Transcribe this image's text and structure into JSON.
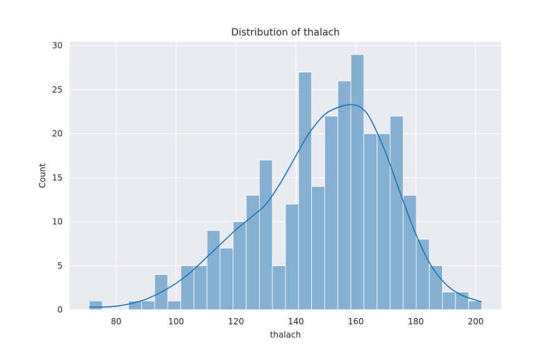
{
  "chart_data": {
    "type": "histogram",
    "title": "Distribution of thalach",
    "xlabel": "thalach",
    "ylabel": "Count",
    "xlim": [
      64.45,
      208.55
    ],
    "ylim": [
      0,
      30.45
    ],
    "xticks": [
      80,
      100,
      120,
      140,
      160,
      180,
      200
    ],
    "yticks": [
      0,
      5,
      10,
      15,
      20,
      25,
      30
    ],
    "grid": true,
    "bar_color": "#85b0d2",
    "kde_color": "#1f77b4",
    "background_color": "#eaeaf2",
    "bins": [
      {
        "x0": 71.0,
        "x1": 75.37,
        "count": 1
      },
      {
        "x0": 75.37,
        "x1": 79.73,
        "count": 0
      },
      {
        "x0": 79.73,
        "x1": 84.1,
        "count": 0
      },
      {
        "x0": 84.1,
        "x1": 88.47,
        "count": 1
      },
      {
        "x0": 88.47,
        "x1": 92.83,
        "count": 1
      },
      {
        "x0": 92.83,
        "x1": 97.2,
        "count": 4
      },
      {
        "x0": 97.2,
        "x1": 101.57,
        "count": 1
      },
      {
        "x0": 101.57,
        "x1": 105.93,
        "count": 5
      },
      {
        "x0": 105.93,
        "x1": 110.3,
        "count": 5
      },
      {
        "x0": 110.3,
        "x1": 114.67,
        "count": 9
      },
      {
        "x0": 114.67,
        "x1": 119.03,
        "count": 7
      },
      {
        "x0": 119.03,
        "x1": 123.4,
        "count": 10
      },
      {
        "x0": 123.4,
        "x1": 127.77,
        "count": 13
      },
      {
        "x0": 127.77,
        "x1": 132.13,
        "count": 17
      },
      {
        "x0": 132.13,
        "x1": 136.5,
        "count": 5
      },
      {
        "x0": 136.5,
        "x1": 140.87,
        "count": 12
      },
      {
        "x0": 140.87,
        "x1": 145.23,
        "count": 27
      },
      {
        "x0": 145.23,
        "x1": 149.6,
        "count": 14
      },
      {
        "x0": 149.6,
        "x1": 153.97,
        "count": 22
      },
      {
        "x0": 153.97,
        "x1": 158.33,
        "count": 26
      },
      {
        "x0": 158.33,
        "x1": 162.7,
        "count": 29
      },
      {
        "x0": 162.7,
        "x1": 167.07,
        "count": 20
      },
      {
        "x0": 167.07,
        "x1": 171.43,
        "count": 20
      },
      {
        "x0": 171.43,
        "x1": 175.8,
        "count": 22
      },
      {
        "x0": 175.8,
        "x1": 180.17,
        "count": 13
      },
      {
        "x0": 180.17,
        "x1": 184.53,
        "count": 8
      },
      {
        "x0": 184.53,
        "x1": 188.9,
        "count": 5
      },
      {
        "x0": 188.9,
        "x1": 193.27,
        "count": 2
      },
      {
        "x0": 193.27,
        "x1": 197.63,
        "count": 2
      },
      {
        "x0": 197.63,
        "x1": 202.0,
        "count": 1
      }
    ],
    "kde": {
      "x": [
        71,
        75,
        80,
        85,
        90,
        95,
        100,
        105,
        110,
        115,
        120,
        125,
        130,
        135,
        140,
        143,
        146,
        150,
        155,
        159,
        162,
        165,
        170,
        175,
        180,
        185,
        190,
        195,
        200,
        202
      ],
      "y": [
        0.3,
        0.3,
        0.4,
        0.7,
        1.2,
        2.0,
        3.0,
        4.3,
        5.9,
        7.5,
        9.1,
        10.5,
        12.0,
        14.5,
        17.5,
        19.3,
        20.8,
        22.3,
        23.1,
        23.3,
        22.9,
        21.6,
        17.8,
        13.1,
        8.6,
        5.1,
        2.9,
        1.7,
        1.1,
        0.9
      ]
    }
  }
}
